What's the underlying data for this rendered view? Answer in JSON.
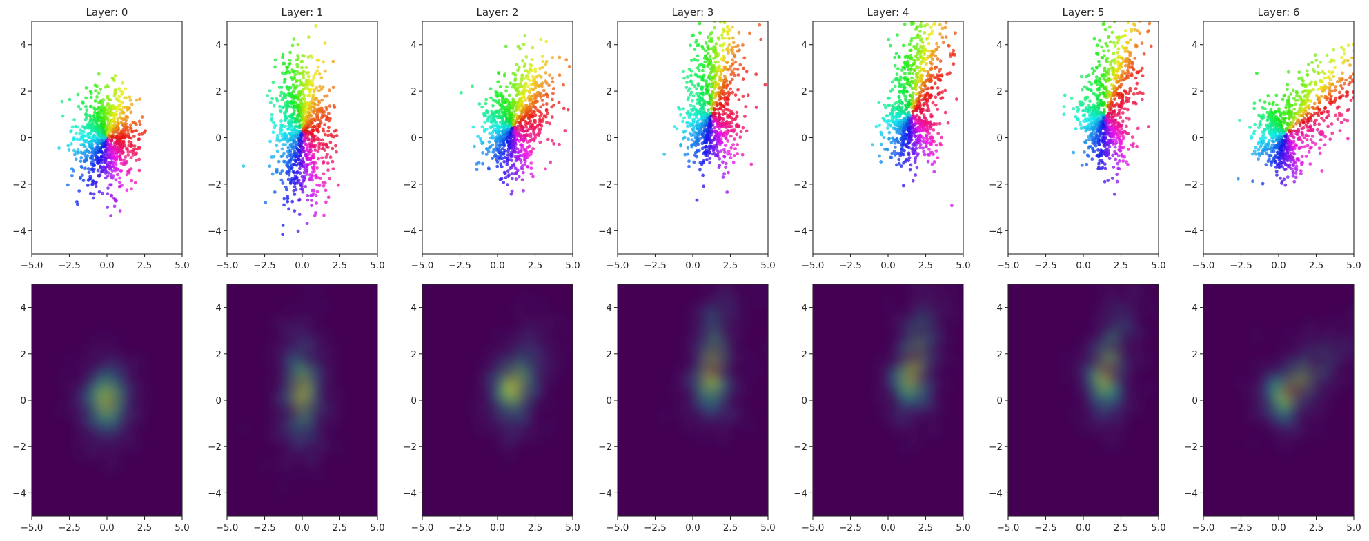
{
  "chart_data": {
    "type": "scatter",
    "layers": [
      {
        "title": "Layer: 0",
        "mean": [
          0.0,
          0.0
        ],
        "spread": [
          1.0,
          1.0
        ],
        "rot": 0.0,
        "arms": []
      },
      {
        "title": "Layer: 1",
        "mean": [
          0.0,
          0.3
        ],
        "spread": [
          0.9,
          1.5
        ],
        "rot": 0.1,
        "arms": []
      },
      {
        "title": "Layer: 2",
        "mean": [
          1.0,
          0.5
        ],
        "spread": [
          1.0,
          1.0
        ],
        "rot": 0.25,
        "arms": [
          {
            "dir": [
              1,
              1
            ],
            "amount": 0.6
          }
        ]
      },
      {
        "title": "Layer: 3",
        "mean": [
          1.2,
          1.0
        ],
        "spread": [
          0.9,
          1.1
        ],
        "rot": 0.5,
        "arms": [
          {
            "dir": [
              0.35,
              1
            ],
            "amount": 1.6
          }
        ]
      },
      {
        "title": "Layer: 4",
        "mean": [
          1.5,
          1.0
        ],
        "spread": [
          0.9,
          1.0
        ],
        "rot": 0.6,
        "arms": [
          {
            "dir": [
              0.5,
              1
            ],
            "amount": 1.8
          }
        ]
      },
      {
        "title": "Layer: 5",
        "mean": [
          1.4,
          1.0
        ],
        "spread": [
          0.8,
          1.0
        ],
        "rot": 0.6,
        "arms": [
          {
            "dir": [
              0.6,
              1
            ],
            "amount": 1.5
          }
        ]
      },
      {
        "title": "Layer: 6",
        "mean": [
          0.5,
          0.2
        ],
        "spread": [
          0.9,
          0.8
        ],
        "rot": 0.3,
        "arms": [
          {
            "dir": [
              1,
              0.6
            ],
            "amount": 2.4
          }
        ]
      }
    ],
    "x_ticks": [
      "−5.0",
      "−2.5",
      "0.0",
      "2.5",
      "5.0"
    ],
    "x_tick_values": [
      -5,
      -2.5,
      0,
      2.5,
      5
    ],
    "y_ticks": [
      "−4",
      "−2",
      "0",
      "2",
      "4"
    ],
    "y_tick_values": [
      -4,
      -2,
      0,
      2,
      4
    ],
    "xlim": [
      -5,
      5
    ],
    "ylim": [
      -5,
      5
    ],
    "points_per_layer": 900,
    "point_coloring": "hue by angle around origin",
    "density_colormap": "viridis",
    "density_background": "#440154",
    "grid": false
  }
}
